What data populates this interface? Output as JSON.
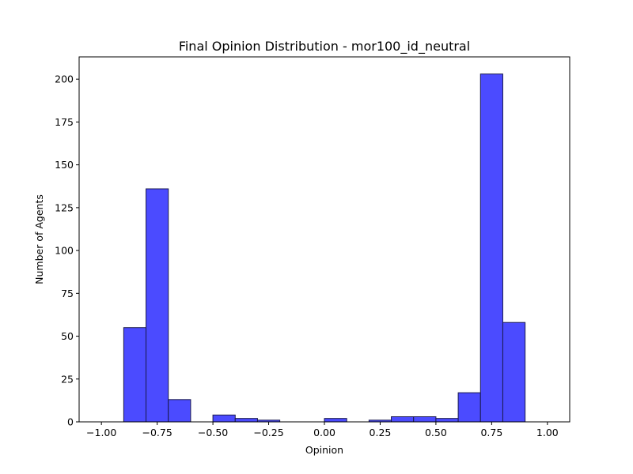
{
  "chart_data": {
    "type": "bar",
    "title": "Final Opinion Distribution - mor100_id_neutral",
    "xlabel": "Opinion",
    "ylabel": "Number of Agents",
    "xlim": [
      -1.1,
      1.1
    ],
    "ylim": [
      0,
      213
    ],
    "x_ticks": [
      -1.0,
      -0.75,
      -0.5,
      -0.25,
      0.0,
      0.25,
      0.5,
      0.75,
      1.0
    ],
    "x_tick_labels": [
      "−1.00",
      "−0.75",
      "−0.50",
      "−0.25",
      "0.00",
      "0.25",
      "0.50",
      "0.75",
      "1.00"
    ],
    "y_ticks": [
      0,
      25,
      50,
      75,
      100,
      125,
      150,
      175,
      200
    ],
    "y_tick_labels": [
      "0",
      "25",
      "50",
      "75",
      "100",
      "125",
      "150",
      "175",
      "200"
    ],
    "bin_width": 0.1,
    "bins": [
      {
        "start": -0.9,
        "count": 55
      },
      {
        "start": -0.8,
        "count": 136
      },
      {
        "start": -0.7,
        "count": 13
      },
      {
        "start": -0.5,
        "count": 4
      },
      {
        "start": -0.4,
        "count": 2
      },
      {
        "start": -0.3,
        "count": 1
      },
      {
        "start": 0.0,
        "count": 2
      },
      {
        "start": 0.2,
        "count": 1
      },
      {
        "start": 0.3,
        "count": 3
      },
      {
        "start": 0.4,
        "count": 3
      },
      {
        "start": 0.5,
        "count": 2
      },
      {
        "start": 0.6,
        "count": 17
      },
      {
        "start": 0.7,
        "count": 203
      },
      {
        "start": 0.8,
        "count": 58
      }
    ],
    "bar_color": "#4b4bff",
    "bar_edge_color": "#1a1a4d",
    "grid": false,
    "legend": "none"
  }
}
